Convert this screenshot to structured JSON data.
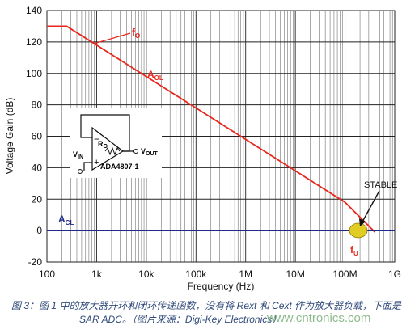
{
  "chart_data": {
    "type": "line",
    "xlabel": "Frequency (Hz)",
    "ylabel": "Voltage Gain (dB)",
    "xscale": "log",
    "xlim": [
      100,
      1000000000
    ],
    "ylim": [
      -20,
      140
    ],
    "grid": true,
    "x_tick_labels": [
      "100",
      "1k",
      "10k",
      "100k",
      "1M",
      "10M",
      "100M",
      "1G"
    ],
    "x_tick_values": [
      100,
      1000,
      10000,
      100000,
      1000000,
      10000000,
      100000000,
      1000000000
    ],
    "y_ticks": [
      -20,
      0,
      20,
      40,
      60,
      80,
      100,
      120,
      140
    ],
    "series": [
      {
        "name": "AOL",
        "color": "#e8271c",
        "x": [
          100,
          250,
          1000,
          10000,
          100000,
          1000000,
          10000000,
          100000000,
          400000000
        ],
        "y": [
          130,
          130,
          118,
          98,
          78,
          58,
          38,
          18,
          -1
        ]
      },
      {
        "name": "ACL",
        "color": "#1f2b8a",
        "x": [
          100,
          1000000000
        ],
        "y": [
          0,
          0
        ]
      }
    ],
    "annotations": {
      "fo": {
        "main": "f",
        "sub": "O"
      },
      "aol": {
        "main": "A",
        "sub": "OL"
      },
      "acl": {
        "main": "A",
        "sub": "CL"
      },
      "fu": {
        "main": "f",
        "sub": "U"
      },
      "stable": "STABLE"
    },
    "inset": {
      "ro": {
        "main": "R",
        "sub": "O"
      },
      "vin": {
        "main": "V",
        "sub": "IN"
      },
      "vout": {
        "main": "V",
        "sub": "OUT"
      },
      "part": "ADA4807-1"
    }
  },
  "caption": {
    "line1": "图 3：图 1 中的放大器开环和闭环传递函数，没有将 Rext 和 Cext 作为放大器负载，下面是",
    "line2": "SAR ADC。（图片来源：Digi-Key Electronics）"
  },
  "watermark": "www.cntronics.com"
}
